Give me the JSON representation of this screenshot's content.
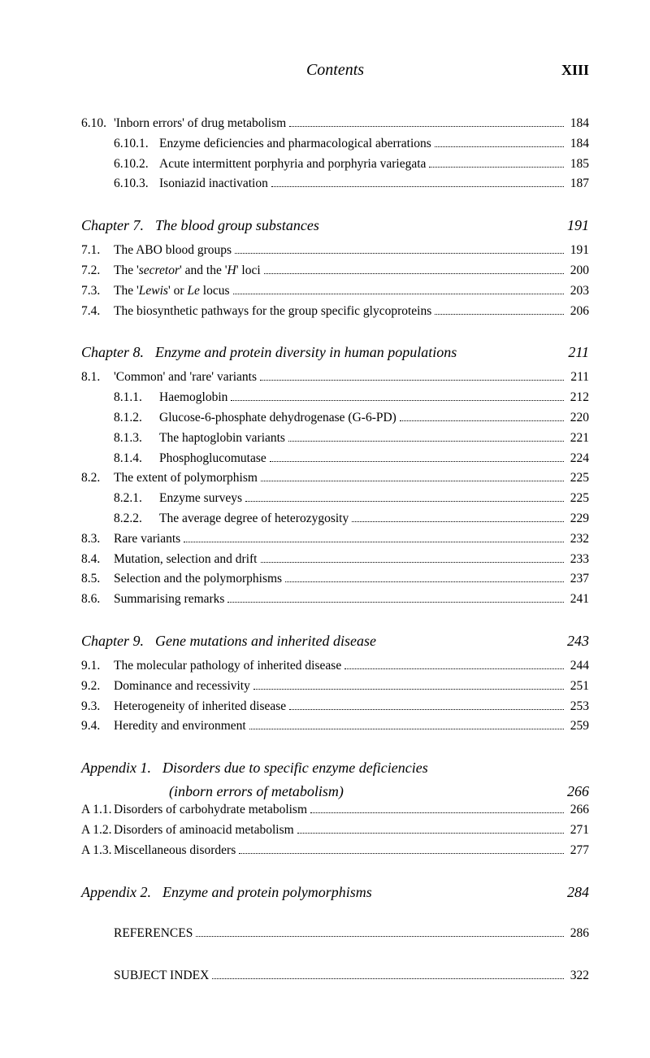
{
  "colors": {
    "text": "#000000",
    "background": "#ffffff"
  },
  "fonts": {
    "body_family": "Times New Roman",
    "body_size_pt": 12,
    "heading_size_pt": 14
  },
  "header": {
    "center": "Contents",
    "right": "XIII"
  },
  "blocks": [
    {
      "type": "entries",
      "items": [
        {
          "level": 0,
          "num": "6.10.",
          "text": "'Inborn errors' of drug metabolism",
          "page": "184"
        },
        {
          "level": 1,
          "num": "6.10.1.",
          "text": "Enzyme deficiencies and pharmacological aberrations",
          "page": "184"
        },
        {
          "level": 1,
          "num": "6.10.2.",
          "text": "Acute intermittent porphyria and porphyria variegata",
          "page": "185"
        },
        {
          "level": 1,
          "num": "6.10.3.",
          "text": "Isoniazid inactivation",
          "page": "187"
        }
      ]
    },
    {
      "type": "chapter",
      "label": "Chapter 7.",
      "title": "The blood group substances",
      "page": "191",
      "items": [
        {
          "level": 0,
          "num": "7.1.",
          "text": "The ABO blood groups",
          "page": "191"
        },
        {
          "level": 0,
          "num": "7.2.",
          "text_html": "The '<i>secretor</i>' and the '<i>H</i>' loci",
          "page": "200"
        },
        {
          "level": 0,
          "num": "7.3.",
          "text_html": "The '<i>Lewis</i>' or <i>Le</i> locus",
          "page": "203"
        },
        {
          "level": 0,
          "num": "7.4.",
          "text": "The biosynthetic pathways for the group specific glycoproteins",
          "page": "206"
        }
      ]
    },
    {
      "type": "chapter",
      "label": "Chapter 8.",
      "title": "Enzyme and protein diversity in human populations",
      "page": "211",
      "items": [
        {
          "level": 0,
          "num": "8.1.",
          "text": "'Common' and 'rare' variants",
          "page": "211"
        },
        {
          "level": 1,
          "num": "8.1.1.",
          "text": "Haemoglobin",
          "page": "212"
        },
        {
          "level": 1,
          "num": "8.1.2.",
          "text": "Glucose-6-phosphate dehydrogenase (G-6-PD)",
          "page": "220"
        },
        {
          "level": 1,
          "num": "8.1.3.",
          "text": "The haptoglobin variants",
          "page": "221"
        },
        {
          "level": 1,
          "num": "8.1.4.",
          "text": "Phosphoglucomutase",
          "page": "224"
        },
        {
          "level": 0,
          "num": "8.2.",
          "text": "The extent of polymorphism",
          "page": "225"
        },
        {
          "level": 1,
          "num": "8.2.1.",
          "text": "Enzyme surveys",
          "page": "225"
        },
        {
          "level": 1,
          "num": "8.2.2.",
          "text": "The average degree of heterozygosity",
          "page": "229"
        },
        {
          "level": 0,
          "num": "8.3.",
          "text": "Rare variants",
          "page": "232"
        },
        {
          "level": 0,
          "num": "8.4.",
          "text": "Mutation, selection and drift",
          "page": "233"
        },
        {
          "level": 0,
          "num": "8.5.",
          "text": "Selection and the polymorphisms",
          "page": "237"
        },
        {
          "level": 0,
          "num": "8.6.",
          "text": "Summarising remarks",
          "page": "241"
        }
      ]
    },
    {
      "type": "chapter",
      "label": "Chapter 9.",
      "title": "Gene mutations and inherited disease",
      "page": "243",
      "items": [
        {
          "level": 0,
          "num": "9.1.",
          "text": "The molecular pathology of inherited disease",
          "page": "244"
        },
        {
          "level": 0,
          "num": "9.2.",
          "text": "Dominance and recessivity",
          "page": "251"
        },
        {
          "level": 0,
          "num": "9.3.",
          "text": "Heterogeneity of inherited disease",
          "page": "253"
        },
        {
          "level": 0,
          "num": "9.4.",
          "text": "Heredity and environment",
          "page": "259"
        }
      ]
    },
    {
      "type": "appendix",
      "label": "Appendix 1.",
      "title": "Disorders due to specific enzyme deficiencies",
      "subtitle": "(inborn errors of metabolism)",
      "page": "266",
      "items": [
        {
          "level": 0,
          "num": "A 1.1.",
          "text": "Disorders of carbohydrate metabolism",
          "page": "266"
        },
        {
          "level": 0,
          "num": "A 1.2.",
          "text": "Disorders of aminoacid metabolism",
          "page": "271"
        },
        {
          "level": 0,
          "num": "A 1.3.",
          "text": "Miscellaneous disorders",
          "page": "277"
        }
      ]
    },
    {
      "type": "appendix",
      "label": "Appendix 2.",
      "title": "Enzyme and protein polymorphisms",
      "page": "284",
      "items": []
    },
    {
      "type": "entries",
      "items": [
        {
          "level": 0,
          "num": "",
          "text": "REFERENCES",
          "page": "286"
        }
      ]
    },
    {
      "type": "entries",
      "items": [
        {
          "level": 0,
          "num": "",
          "text": "SUBJECT INDEX",
          "page": "322"
        }
      ]
    }
  ]
}
